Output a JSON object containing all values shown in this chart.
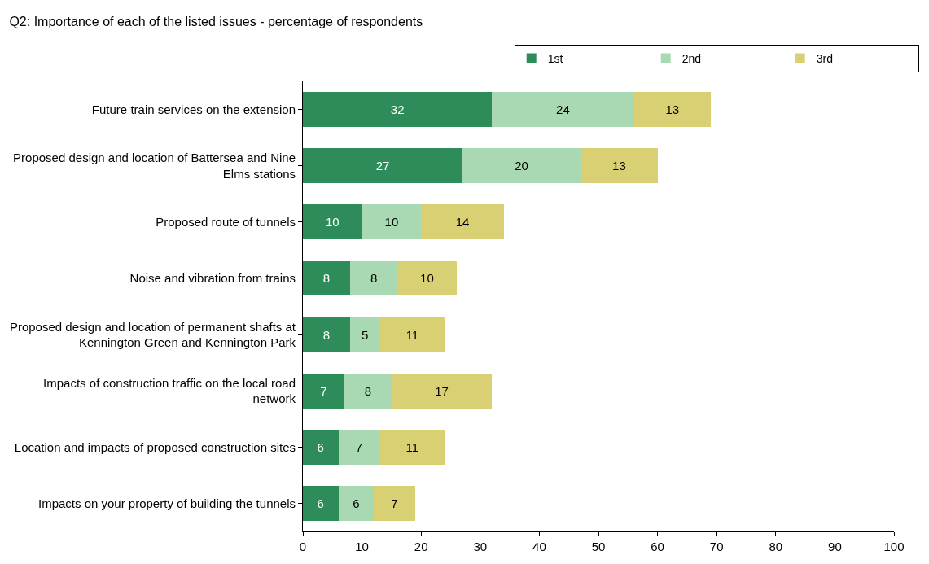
{
  "chart_data": {
    "type": "bar",
    "orientation": "horizontal",
    "stacked": true,
    "title": "Q2: Importance of each of the listed issues - percentage of respondents",
    "categories": [
      "Future train services on the extension",
      "Proposed design and location of Battersea and Nine Elms stations",
      "Proposed route of tunnels",
      "Noise and vibration from trains",
      "Proposed design and location of permanent shafts at Kennington Green and Kennington Park",
      "Impacts of construction traffic on the local road network",
      "Location and impacts of proposed construction sites",
      "Impacts on your property of building the tunnels"
    ],
    "series": [
      {
        "name": "1st",
        "color": "#2e8b5a",
        "values": [
          32,
          27,
          10,
          8,
          8,
          7,
          6,
          6
        ]
      },
      {
        "name": "2nd",
        "color": "#a9d9b2",
        "values": [
          24,
          20,
          10,
          8,
          5,
          8,
          7,
          6
        ]
      },
      {
        "name": "3rd",
        "color": "#d9d074",
        "values": [
          13,
          13,
          14,
          10,
          11,
          17,
          11,
          7
        ]
      }
    ],
    "xlim": [
      0,
      100
    ],
    "xticks": [
      0,
      10,
      20,
      30,
      40,
      50,
      60,
      70,
      80,
      90,
      100
    ],
    "data_labels": true,
    "legend": "top"
  }
}
